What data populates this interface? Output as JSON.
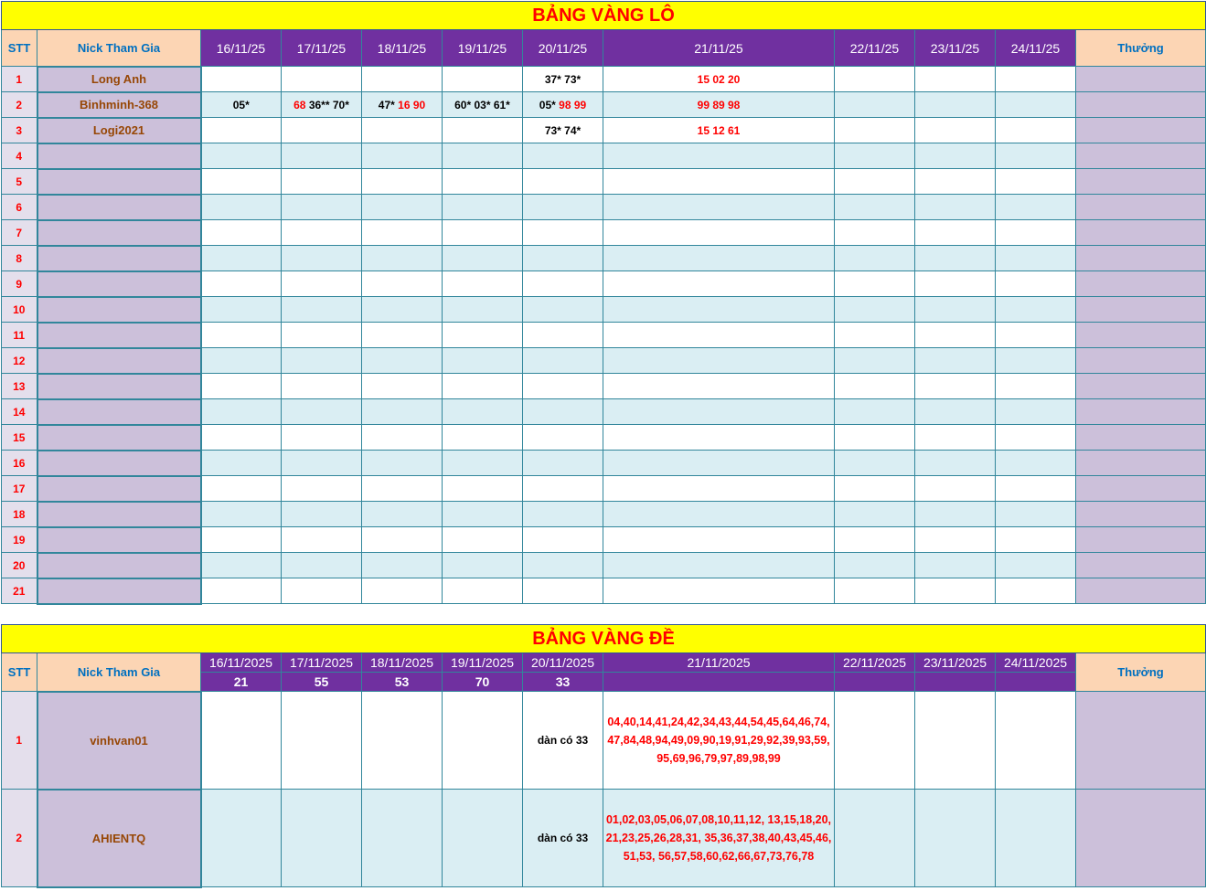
{
  "lo": {
    "title": "BẢNG VÀNG LÔ",
    "headers": {
      "stt": "STT",
      "nick": "Nick Tham Gia",
      "thuong": "Thưởng",
      "dates": [
        "16/11/25",
        "17/11/25",
        "18/11/25",
        "19/11/25",
        "20/11/25",
        "21/11/25",
        "22/11/25",
        "23/11/25",
        "24/11/25"
      ]
    },
    "rows": [
      {
        "stt": "1",
        "nick": "Long Anh",
        "cells": [
          [],
          [],
          [],
          [],
          [
            {
              "t": "37* 73*",
              "red": false
            }
          ],
          [
            {
              "t": "15 02 20",
              "red": true
            }
          ],
          [],
          [],
          []
        ]
      },
      {
        "stt": "2",
        "nick": "Binhminh-368",
        "cells": [
          [
            {
              "t": "05*",
              "red": false
            }
          ],
          [
            {
              "t": "68",
              "red": true
            },
            {
              "t": " 36** 70*",
              "red": false
            }
          ],
          [
            {
              "t": "47*",
              "red": false
            },
            {
              "t": " 16 90",
              "red": true
            }
          ],
          [
            {
              "t": "60* 03* 61*",
              "red": false
            }
          ],
          [
            {
              "t": "05*",
              "red": false
            },
            {
              "t": " 98 99",
              "red": true
            }
          ],
          [
            {
              "t": "99 89 98",
              "red": true
            }
          ],
          [],
          [],
          []
        ]
      },
      {
        "stt": "3",
        "nick": "Logi2021",
        "cells": [
          [],
          [],
          [],
          [],
          [
            {
              "t": "73* 74*",
              "red": false
            }
          ],
          [
            {
              "t": "15 12 61",
              "red": true
            }
          ],
          [],
          [],
          []
        ]
      },
      {
        "stt": "4",
        "nick": ""
      },
      {
        "stt": "5",
        "nick": ""
      },
      {
        "stt": "6",
        "nick": ""
      },
      {
        "stt": "7",
        "nick": ""
      },
      {
        "stt": "8",
        "nick": ""
      },
      {
        "stt": "9",
        "nick": ""
      },
      {
        "stt": "10",
        "nick": ""
      },
      {
        "stt": "11",
        "nick": ""
      },
      {
        "stt": "12",
        "nick": ""
      },
      {
        "stt": "13",
        "nick": ""
      },
      {
        "stt": "14",
        "nick": ""
      },
      {
        "stt": "15",
        "nick": ""
      },
      {
        "stt": "16",
        "nick": ""
      },
      {
        "stt": "17",
        "nick": ""
      },
      {
        "stt": "18",
        "nick": ""
      },
      {
        "stt": "19",
        "nick": ""
      },
      {
        "stt": "20",
        "nick": ""
      },
      {
        "stt": "21",
        "nick": ""
      }
    ]
  },
  "de": {
    "title": "BẢNG VÀNG ĐỀ",
    "headers": {
      "stt": "STT",
      "nick": "Nick Tham Gia",
      "thuong": "Thưởng",
      "dates": [
        "16/11/2025",
        "17/11/2025",
        "18/11/2025",
        "19/11/2025",
        "20/11/2025",
        "21/11/2025",
        "22/11/2025",
        "23/11/2025",
        "24/11/2025"
      ],
      "results": [
        "21",
        "55",
        "53",
        "70",
        "33",
        "",
        "",
        "",
        ""
      ]
    },
    "rows": [
      {
        "stt": "1",
        "nick": "vinhvan01",
        "cells": [
          "",
          "",
          "",
          "",
          "dàn có 33",
          "04,40,14,41,24,42,34,43,44,54,45,64,46,74,47,84,48,94,49,09,90,19,91,29,92,39,93,59,95,69,96,79,97,89,98,99",
          "",
          "",
          ""
        ]
      },
      {
        "stt": "2",
        "nick": "AHIENTQ",
        "cells": [
          "",
          "",
          "",
          "",
          "dàn có 33",
          "01,02,03,05,06,07,08,10,11,12, 13,15,18,20,21,23,25,26,28,31, 35,36,37,38,40,43,45,46,51,53, 56,57,58,60,62,66,67,73,76,78",
          "",
          "",
          ""
        ]
      }
    ]
  },
  "colors": {
    "title_bg": "#ffff00",
    "title_text": "#ff0000",
    "header_purple": "#7030a0",
    "header_peach": "#fcd5b4",
    "nick_bg": "#ccc0da",
    "alt_row": "#daeef3"
  }
}
